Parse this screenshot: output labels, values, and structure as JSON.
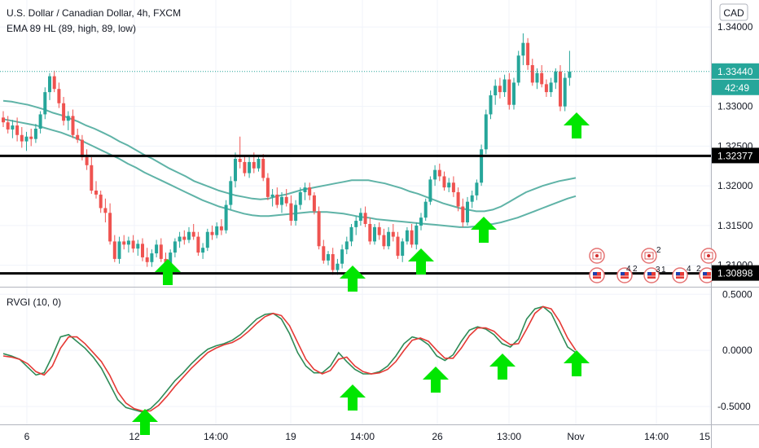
{
  "header": {
    "symbol_line": "U.S. Dollar / Canadian Dollar, 4h, FXCM",
    "indicator_line": "EMA 89 HL (89, high, 89, low)",
    "currency_badge": "CAD",
    "oscillator_label": "RVGI (10, 0)"
  },
  "price_axis": {
    "ticks": [
      "1.34000",
      "1.33000",
      "1.32500",
      "1.32000",
      "1.31500",
      "1.31000"
    ],
    "tick_values": [
      1.34,
      1.33,
      1.325,
      1.32,
      1.315,
      1.31
    ],
    "current_price": "1.33440",
    "countdown": "42:49",
    "level_high_label": "1.32377",
    "level_low_label": "1.30898"
  },
  "osc_axis": {
    "ticks": [
      "0.5000",
      "0.0000",
      "-0.5000"
    ],
    "tick_values": [
      0.5,
      0,
      -0.5
    ]
  },
  "time_axis": {
    "labels": [
      "6",
      "12",
      "14:00",
      "19",
      "14:00",
      "26",
      "13:00",
      "Nov",
      "14:00",
      "15"
    ]
  },
  "events": {
    "badges": [
      "4",
      "2",
      "2",
      "3",
      "1",
      "4",
      "2"
    ]
  },
  "colors": {
    "bull": "#26a69a",
    "bear": "#ef5350",
    "ema": "#5fb3a7",
    "level": "#000000",
    "arrow": "#00e600",
    "rvgi": "#2e8b57",
    "signal": "#e53935"
  },
  "chart_data": [
    {
      "type": "candlestick",
      "title": "U.S. Dollar / Canadian Dollar, 4h, FXCM",
      "ylim": [
        1.3073,
        1.3434
      ],
      "x_labels": [
        "6",
        "12",
        "14:00",
        "19",
        "14:00",
        "26",
        "13:00",
        "Nov",
        "14:00",
        "15"
      ],
      "candle_width": 4,
      "candles": [
        [
          1.3286,
          1.3294,
          1.3274,
          1.328
        ],
        [
          1.328,
          1.3288,
          1.3266,
          1.3271
        ],
        [
          1.3271,
          1.3283,
          1.326,
          1.3276
        ],
        [
          1.3276,
          1.3286,
          1.3256,
          1.3264
        ],
        [
          1.3264,
          1.3274,
          1.3248,
          1.3256
        ],
        [
          1.3256,
          1.3268,
          1.3244,
          1.3262
        ],
        [
          1.3262,
          1.3272,
          1.325,
          1.3259
        ],
        [
          1.3259,
          1.3278,
          1.3254,
          1.3272
        ],
        [
          1.3272,
          1.3294,
          1.3266,
          1.329
        ],
        [
          1.329,
          1.3324,
          1.3284,
          1.3318
        ],
        [
          1.3318,
          1.3342,
          1.3308,
          1.3338
        ],
        [
          1.3338,
          1.3345,
          1.3318,
          1.3322
        ],
        [
          1.3322,
          1.333,
          1.3298,
          1.3304
        ],
        [
          1.3304,
          1.3312,
          1.3276,
          1.3282
        ],
        [
          1.3282,
          1.3294,
          1.327,
          1.3288
        ],
        [
          1.3288,
          1.3296,
          1.326,
          1.3264
        ],
        [
          1.3264,
          1.3272,
          1.3254,
          1.3258
        ],
        [
          1.3258,
          1.3264,
          1.3232,
          1.3236
        ],
        [
          1.3236,
          1.3246,
          1.322,
          1.3226
        ],
        [
          1.3226,
          1.3236,
          1.319,
          1.3194
        ],
        [
          1.3194,
          1.3206,
          1.3184,
          1.3189
        ],
        [
          1.3189,
          1.3194,
          1.3166,
          1.3172
        ],
        [
          1.3172,
          1.3184,
          1.3154,
          1.3166
        ],
        [
          1.3166,
          1.3178,
          1.3126,
          1.313
        ],
        [
          1.313,
          1.3138,
          1.3104,
          1.3108
        ],
        [
          1.3108,
          1.3136,
          1.3102,
          1.313
        ],
        [
          1.313,
          1.3138,
          1.312,
          1.3126
        ],
        [
          1.3126,
          1.3136,
          1.3116,
          1.3131
        ],
        [
          1.3131,
          1.3138,
          1.3116,
          1.3121
        ],
        [
          1.3121,
          1.3132,
          1.3112,
          1.3127
        ],
        [
          1.3127,
          1.3134,
          1.3105,
          1.311
        ],
        [
          1.311,
          1.3122,
          1.3098,
          1.3104
        ],
        [
          1.3104,
          1.312,
          1.3098,
          1.3115
        ],
        [
          1.3115,
          1.3132,
          1.311,
          1.3126
        ],
        [
          1.3126,
          1.3134,
          1.3104,
          1.3108
        ],
        [
          1.3108,
          1.3116,
          1.3096,
          1.31
        ],
        [
          1.31,
          1.312,
          1.3094,
          1.3116
        ],
        [
          1.3116,
          1.3134,
          1.311,
          1.313
        ],
        [
          1.313,
          1.3142,
          1.3122,
          1.3136
        ],
        [
          1.3136,
          1.3144,
          1.3126,
          1.3132
        ],
        [
          1.3132,
          1.3148,
          1.3128,
          1.3142
        ],
        [
          1.3142,
          1.3152,
          1.3132,
          1.3136
        ],
        [
          1.3136,
          1.3142,
          1.3112,
          1.3116
        ],
        [
          1.3116,
          1.3128,
          1.3108,
          1.3122
        ],
        [
          1.3122,
          1.3146,
          1.3118,
          1.3142
        ],
        [
          1.3142,
          1.315,
          1.3132,
          1.3138
        ],
        [
          1.3138,
          1.3154,
          1.3134,
          1.3149
        ],
        [
          1.3149,
          1.3158,
          1.3138,
          1.3144
        ],
        [
          1.3144,
          1.3182,
          1.314,
          1.3176
        ],
        [
          1.3176,
          1.3212,
          1.317,
          1.3206
        ],
        [
          1.3206,
          1.3242,
          1.3198,
          1.3234
        ],
        [
          1.3234,
          1.3262,
          1.3222,
          1.323
        ],
        [
          1.323,
          1.3238,
          1.3212,
          1.3216
        ],
        [
          1.3216,
          1.3236,
          1.321,
          1.323
        ],
        [
          1.323,
          1.3242,
          1.3216,
          1.3222
        ],
        [
          1.3222,
          1.3238,
          1.3218,
          1.3234
        ],
        [
          1.3234,
          1.324,
          1.3206,
          1.321
        ],
        [
          1.321,
          1.3216,
          1.3182,
          1.3186
        ],
        [
          1.3186,
          1.3196,
          1.3174,
          1.3189
        ],
        [
          1.3189,
          1.3198,
          1.3172,
          1.3176
        ],
        [
          1.3176,
          1.3192,
          1.3166,
          1.3186
        ],
        [
          1.3186,
          1.3196,
          1.3174,
          1.3178
        ],
        [
          1.3178,
          1.3188,
          1.315,
          1.3156
        ],
        [
          1.3156,
          1.3182,
          1.315,
          1.3176
        ],
        [
          1.3176,
          1.3198,
          1.317,
          1.3192
        ],
        [
          1.3192,
          1.3204,
          1.3182,
          1.3198
        ],
        [
          1.3198,
          1.3204,
          1.3182,
          1.3188
        ],
        [
          1.3188,
          1.3192,
          1.3164,
          1.3168
        ],
        [
          1.3168,
          1.3174,
          1.312,
          1.3124
        ],
        [
          1.3124,
          1.3132,
          1.3102,
          1.3106
        ],
        [
          1.3106,
          1.3118,
          1.31,
          1.3114
        ],
        [
          1.3114,
          1.3122,
          1.3088,
          1.3094
        ],
        [
          1.3094,
          1.3108,
          1.3088,
          1.3102
        ],
        [
          1.3102,
          1.3126,
          1.3096,
          1.312
        ],
        [
          1.312,
          1.3136,
          1.3114,
          1.313
        ],
        [
          1.313,
          1.3152,
          1.3124,
          1.3148
        ],
        [
          1.3148,
          1.3162,
          1.3138,
          1.3156
        ],
        [
          1.3156,
          1.3172,
          1.315,
          1.3166
        ],
        [
          1.3166,
          1.3174,
          1.3148,
          1.3152
        ],
        [
          1.3152,
          1.316,
          1.3126,
          1.313
        ],
        [
          1.313,
          1.3152,
          1.3126,
          1.3148
        ],
        [
          1.3148,
          1.3154,
          1.3132,
          1.3138
        ],
        [
          1.3138,
          1.3146,
          1.312,
          1.3124
        ],
        [
          1.3124,
          1.3148,
          1.312,
          1.3142
        ],
        [
          1.3142,
          1.3152,
          1.313,
          1.3136
        ],
        [
          1.3136,
          1.3142,
          1.3108,
          1.3112
        ],
        [
          1.3112,
          1.3134,
          1.3104,
          1.313
        ],
        [
          1.313,
          1.3148,
          1.3126,
          1.3144
        ],
        [
          1.3144,
          1.3152,
          1.3122,
          1.3126
        ],
        [
          1.3126,
          1.3154,
          1.312,
          1.315
        ],
        [
          1.315,
          1.3166,
          1.3144,
          1.316
        ],
        [
          1.316,
          1.3184,
          1.3156,
          1.318
        ],
        [
          1.318,
          1.3212,
          1.3176,
          1.3208
        ],
        [
          1.3208,
          1.3226,
          1.32,
          1.322
        ],
        [
          1.322,
          1.3228,
          1.3206,
          1.3212
        ],
        [
          1.3212,
          1.3218,
          1.3194,
          1.3198
        ],
        [
          1.3198,
          1.321,
          1.3192,
          1.3204
        ],
        [
          1.3204,
          1.3212,
          1.3186,
          1.3192
        ],
        [
          1.3192,
          1.3198,
          1.3168,
          1.3174
        ],
        [
          1.3174,
          1.3184,
          1.3148,
          1.3154
        ],
        [
          1.3154,
          1.3186,
          1.315,
          1.318
        ],
        [
          1.318,
          1.3194,
          1.3172,
          1.3188
        ],
        [
          1.3188,
          1.3208,
          1.3182,
          1.3204
        ],
        [
          1.3204,
          1.3252,
          1.32,
          1.3246
        ],
        [
          1.3246,
          1.3296,
          1.324,
          1.329
        ],
        [
          1.329,
          1.332,
          1.3284,
          1.3314
        ],
        [
          1.3314,
          1.3334,
          1.3302,
          1.3326
        ],
        [
          1.3326,
          1.3336,
          1.331,
          1.3318
        ],
        [
          1.3318,
          1.334,
          1.3312,
          1.3334
        ],
        [
          1.3334,
          1.3342,
          1.3296,
          1.3302
        ],
        [
          1.3302,
          1.3336,
          1.3296,
          1.333
        ],
        [
          1.333,
          1.337,
          1.3326,
          1.3364
        ],
        [
          1.3364,
          1.3392,
          1.3352,
          1.338
        ],
        [
          1.338,
          1.3386,
          1.3346,
          1.3352
        ],
        [
          1.3352,
          1.336,
          1.3326,
          1.333
        ],
        [
          1.333,
          1.3348,
          1.3322,
          1.3342
        ],
        [
          1.3342,
          1.3352,
          1.3324,
          1.3328
        ],
        [
          1.3328,
          1.3334,
          1.3312,
          1.3318
        ],
        [
          1.3318,
          1.3336,
          1.3312,
          1.333
        ],
        [
          1.333,
          1.3348,
          1.3322,
          1.3344
        ],
        [
          1.3344,
          1.3352,
          1.3294,
          1.33
        ],
        [
          1.33,
          1.3342,
          1.3294,
          1.3336
        ],
        [
          1.3336,
          1.337,
          1.3326,
          1.3344
        ]
      ],
      "ema_high": [
        1.3307,
        1.3306,
        1.3304,
        1.3302,
        1.3299,
        1.3296,
        1.3292,
        1.3289,
        1.3285,
        1.3281,
        1.3276,
        1.3272,
        1.3267,
        1.3262,
        1.3256,
        1.3251,
        1.3245,
        1.3239,
        1.3234,
        1.3228,
        1.3222,
        1.3217,
        1.3212,
        1.3206,
        1.3202,
        1.3198,
        1.3194,
        1.3191,
        1.3188,
        1.3186,
        1.3184,
        1.3183,
        1.3184,
        1.3187,
        1.3189,
        1.3192,
        1.3195,
        1.3197,
        1.3199,
        1.3201,
        1.3203,
        1.3205,
        1.3207,
        1.3207,
        1.3207,
        1.3205,
        1.3203,
        1.32,
        1.3197,
        1.3193,
        1.319,
        1.3186,
        1.3182,
        1.3178,
        1.3175,
        1.3172,
        1.317,
        1.3168,
        1.3168,
        1.317,
        1.3174,
        1.318,
        1.3186,
        1.3192,
        1.3196,
        1.32,
        1.3203,
        1.3206,
        1.3208,
        1.321
      ],
      "ema_low": [
        1.3284,
        1.3282,
        1.328,
        1.3278,
        1.3276,
        1.3273,
        1.327,
        1.3267,
        1.3263,
        1.3259,
        1.3254,
        1.3249,
        1.3244,
        1.3239,
        1.3234,
        1.3228,
        1.3223,
        1.3217,
        1.3212,
        1.3207,
        1.3202,
        1.3197,
        1.3192,
        1.3187,
        1.3182,
        1.3178,
        1.3174,
        1.3171,
        1.3168,
        1.3165,
        1.3163,
        1.3162,
        1.3162,
        1.3163,
        1.3164,
        1.3165,
        1.3166,
        1.3167,
        1.3167,
        1.3167,
        1.3166,
        1.3165,
        1.3163,
        1.3161,
        1.316,
        1.3158,
        1.3157,
        1.3156,
        1.3155,
        1.3154,
        1.3153,
        1.3152,
        1.3151,
        1.315,
        1.3149,
        1.3148,
        1.3148,
        1.3149,
        1.3151,
        1.3152,
        1.3154,
        1.3157,
        1.316,
        1.3164,
        1.3168,
        1.3172,
        1.3176,
        1.318,
        1.3184,
        1.3187
      ],
      "levels": [
        1.32377,
        1.30898
      ],
      "current_price": 1.3344
    },
    {
      "type": "line",
      "title": "RVGI (10, 0)",
      "ylim": [
        -0.66,
        0.56
      ],
      "series": [
        {
          "values": [
            -0.03,
            -0.05,
            -0.08,
            -0.15,
            -0.22,
            -0.2,
            -0.05,
            0.12,
            0.14,
            0.08,
            0.02,
            -0.06,
            -0.16,
            -0.3,
            -0.44,
            -0.51,
            -0.53,
            -0.55,
            -0.52,
            -0.45,
            -0.36,
            -0.27,
            -0.2,
            -0.12,
            -0.05,
            0.01,
            0.04,
            0.06,
            0.09,
            0.14,
            0.21,
            0.28,
            0.32,
            0.33,
            0.28,
            0.15,
            -0.02,
            -0.14,
            -0.2,
            -0.2,
            -0.14,
            -0.02,
            -0.1,
            -0.17,
            -0.21,
            -0.21,
            -0.19,
            -0.14,
            -0.05,
            0.06,
            0.12,
            0.1,
            0.05,
            -0.05,
            -0.09,
            -0.04,
            0.08,
            0.18,
            0.21,
            0.19,
            0.14,
            0.06,
            0.03,
            0.1,
            0.28,
            0.37,
            0.39,
            0.33,
            0.18,
            0.03,
            -0.02
          ]
        },
        {
          "values": [
            -0.05,
            -0.06,
            -0.08,
            -0.12,
            -0.19,
            -0.22,
            -0.14,
            0.02,
            0.12,
            0.12,
            0.06,
            -0.02,
            -0.1,
            -0.22,
            -0.37,
            -0.47,
            -0.52,
            -0.54,
            -0.54,
            -0.49,
            -0.41,
            -0.32,
            -0.24,
            -0.16,
            -0.09,
            -0.02,
            0.02,
            0.05,
            0.07,
            0.11,
            0.17,
            0.24,
            0.3,
            0.33,
            0.31,
            0.22,
            0.07,
            -0.08,
            -0.17,
            -0.21,
            -0.18,
            -0.08,
            -0.06,
            -0.14,
            -0.19,
            -0.21,
            -0.2,
            -0.17,
            -0.1,
            0.0,
            0.09,
            0.11,
            0.08,
            0.0,
            -0.07,
            -0.07,
            0.02,
            0.13,
            0.2,
            0.2,
            0.17,
            0.1,
            0.05,
            0.06,
            0.19,
            0.33,
            0.39,
            0.37,
            0.26,
            0.11,
            0.0
          ]
        }
      ]
    }
  ]
}
